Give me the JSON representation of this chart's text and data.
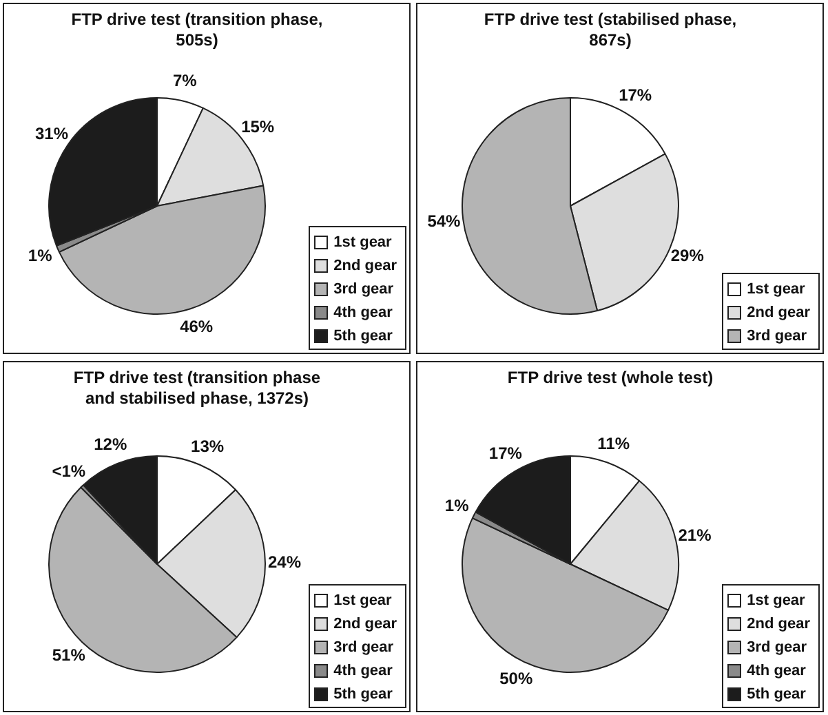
{
  "chart_data": [
    {
      "type": "pie",
      "title": "FTP drive test (transition phase, 505s)",
      "categories": [
        "1st gear",
        "2nd gear",
        "3rd gear",
        "4th gear",
        "5th gear"
      ],
      "values": [
        7,
        15,
        46,
        1,
        31
      ],
      "value_labels": [
        "7%",
        "15%",
        "46%",
        "1%",
        "31%"
      ],
      "colors": [
        "#ffffff",
        "#dedede",
        "#b4b4b4",
        "#8a8a8a",
        "#1c1c1c"
      ],
      "legend": "bottom right"
    },
    {
      "type": "pie",
      "title": "FTP drive test (stabilised phase, 867s)",
      "categories": [
        "1st gear",
        "2nd gear",
        "3rd gear"
      ],
      "values": [
        17,
        29,
        54
      ],
      "value_labels": [
        "17%",
        "29%",
        "54%"
      ],
      "colors": [
        "#ffffff",
        "#dedede",
        "#b4b4b4"
      ],
      "legend": "bottom right"
    },
    {
      "type": "pie",
      "title": "FTP drive test (transition phase and stabilised phase, 1372s)",
      "categories": [
        "1st gear",
        "2nd gear",
        "3rd gear",
        "4th gear",
        "5th gear"
      ],
      "values": [
        13,
        24,
        51,
        0.5,
        12
      ],
      "value_labels": [
        "13%",
        "24%",
        "51%",
        "<1%",
        "12%"
      ],
      "colors": [
        "#ffffff",
        "#dedede",
        "#b4b4b4",
        "#8a8a8a",
        "#1c1c1c"
      ],
      "legend": "bottom right"
    },
    {
      "type": "pie",
      "title": "FTP drive test (whole test)",
      "categories": [
        "1st gear",
        "2nd gear",
        "3rd gear",
        "4th gear",
        "5th gear"
      ],
      "values": [
        11,
        21,
        50,
        1,
        17
      ],
      "value_labels": [
        "11%",
        "21%",
        "50%",
        "1%",
        "17%"
      ],
      "colors": [
        "#ffffff",
        "#dedede",
        "#b4b4b4",
        "#8a8a8a",
        "#1c1c1c"
      ],
      "legend": "bottom right"
    }
  ]
}
